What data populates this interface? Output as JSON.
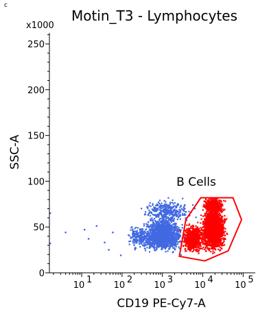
{
  "panel_letter": "c",
  "chart_data": {
    "type": "scatter",
    "title": "Motin_T3 - Lymphocytes",
    "xlabel": "CD19 PE-Cy7-A",
    "ylabel": "SSC-A",
    "y_multiplier_label": "x1000",
    "x_scale": "log",
    "xlim_exp": [
      0.2,
      5.3
    ],
    "ylim": [
      0,
      262
    ],
    "y_ticks": [
      0,
      50,
      100,
      150,
      200,
      250
    ],
    "y_tick_labels": [
      "0",
      "50",
      "100",
      "150",
      "200",
      "250"
    ],
    "x_tick_exps": [
      1,
      2,
      3,
      4,
      5
    ],
    "x_tick_labels": [
      "10",
      "10",
      "10",
      "10",
      "10"
    ],
    "x_tick_sups": [
      "1",
      "2",
      "3",
      "4",
      "5"
    ],
    "grid": false,
    "legend": "none",
    "colors": {
      "population": "#4169e1",
      "b_cells": "#ff0000",
      "gate": "#ff0000"
    },
    "series": [
      {
        "name": "",
        "color": "#4169e1",
        "clusters": [
          {
            "x_center": 3.0,
            "x_spread": 0.32,
            "y_center": 42,
            "y_spread": 12,
            "count": 1600
          },
          {
            "x_center": 3.1,
            "x_spread": 0.4,
            "y_center": 68,
            "y_spread": 9,
            "count": 350
          },
          {
            "x_center": 2.45,
            "x_spread": 0.22,
            "y_center": 40,
            "y_spread": 9,
            "count": 220
          }
        ],
        "outliers": [
          [
            0.2,
            66
          ],
          [
            0.2,
            33
          ],
          [
            0.58,
            45
          ],
          [
            1.05,
            48
          ],
          [
            1.35,
            52
          ],
          [
            1.15,
            38
          ],
          [
            1.55,
            34
          ],
          [
            1.65,
            26
          ],
          [
            1.95,
            20
          ],
          [
            1.75,
            45
          ]
        ]
      },
      {
        "name": "B Cells",
        "color": "#ff0000",
        "clusters": [
          {
            "x_center": 4.25,
            "x_spread": 0.2,
            "y_center": 48,
            "y_spread": 16,
            "count": 1900
          },
          {
            "x_center": 3.75,
            "x_spread": 0.18,
            "y_center": 38,
            "y_spread": 10,
            "count": 700
          },
          {
            "x_center": 4.25,
            "x_spread": 0.18,
            "y_center": 74,
            "y_spread": 6,
            "count": 420
          }
        ]
      }
    ],
    "gate": {
      "label": "B Cells",
      "polygon": [
        [
          3.42,
          18
        ],
        [
          3.58,
          58
        ],
        [
          3.95,
          82
        ],
        [
          4.75,
          82
        ],
        [
          4.96,
          58
        ],
        [
          4.63,
          24
        ],
        [
          4.05,
          13
        ]
      ]
    }
  }
}
